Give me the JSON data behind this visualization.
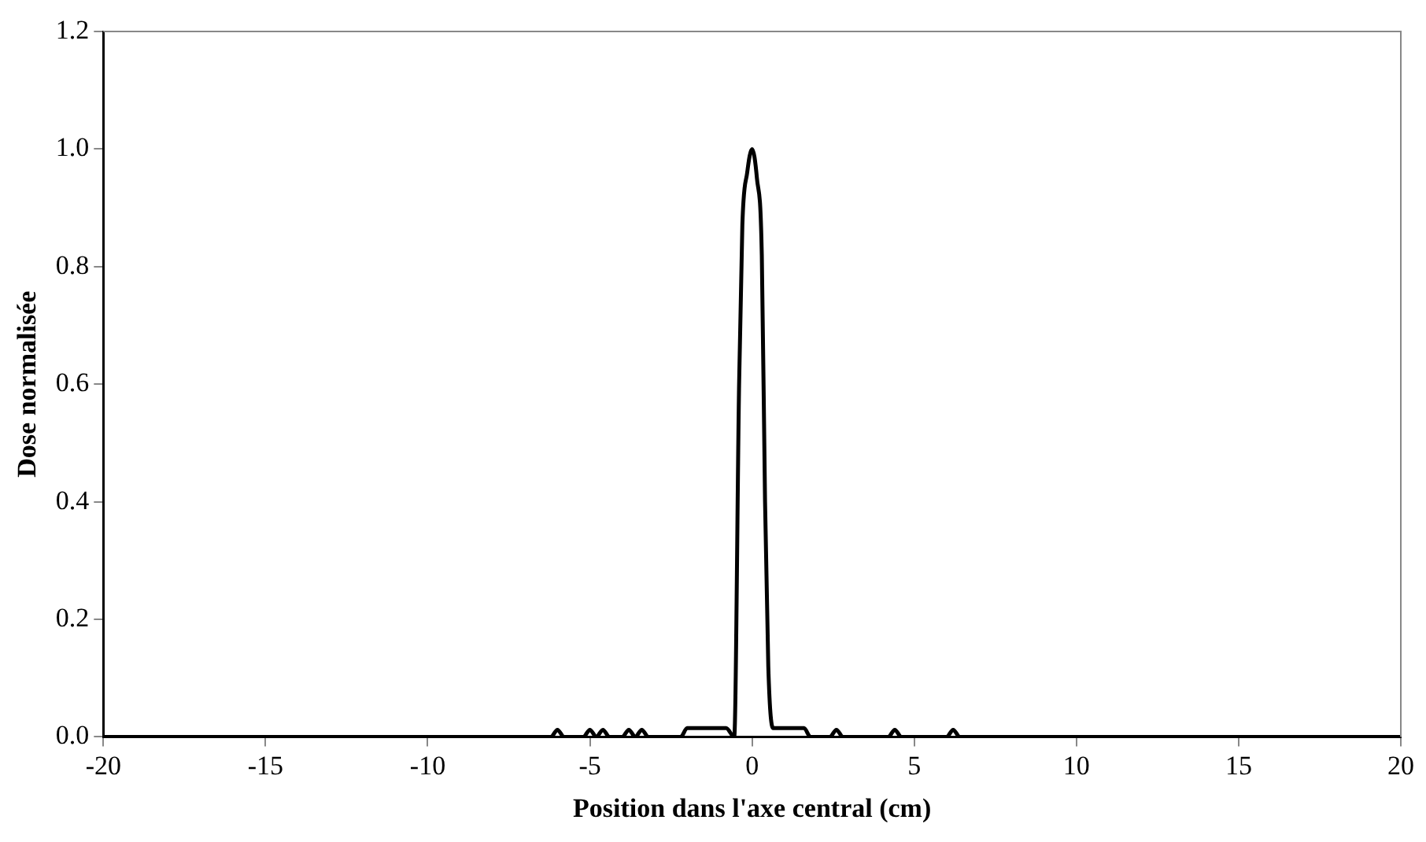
{
  "chart_data": {
    "type": "line",
    "xlabel": "Position dans l'axe central (cm)",
    "ylabel": "Dose normalisée",
    "xlim": [
      -20,
      20
    ],
    "xticks": [
      -20,
      -15,
      -10,
      -5,
      0,
      5,
      10,
      15,
      20
    ],
    "ylim": [
      0,
      1.2
    ],
    "yticks": [
      {
        "value": 0,
        "label": "0.0"
      },
      {
        "value": 0.2,
        "label": "0.2"
      },
      {
        "value": 0.4,
        "label": "0.4"
      },
      {
        "value": 0.6,
        "label": "0.6"
      },
      {
        "value": 0.8,
        "label": "0.8"
      },
      {
        "value": 1,
        "label": "1.0"
      },
      {
        "value": 1.2,
        "label": "1.2"
      }
    ],
    "grid": false,
    "legend": false,
    "marker": "none",
    "line_style": "solid",
    "series": [
      {
        "color": "#000000",
        "x": [
          -20,
          -6.2,
          -6.0,
          -5.8,
          -5.2,
          -5.0,
          -4.8,
          -4.6,
          -4.4,
          -4.0,
          -3.8,
          -3.6,
          -3.4,
          -3.2,
          -2.2,
          -2.0,
          -0.8,
          -0.55,
          -0.4,
          -0.3,
          -0.15,
          0,
          0.15,
          0.3,
          0.4,
          0.5,
          0.65,
          1.6,
          1.8,
          2.4,
          2.6,
          2.8,
          4.2,
          4.4,
          4.6,
          6.0,
          6.2,
          6.4,
          20
        ],
        "values": [
          0,
          0,
          0.012,
          0,
          0,
          0.012,
          0,
          0.012,
          0,
          0,
          0.012,
          0,
          0.012,
          0,
          0,
          0.015,
          0.015,
          0,
          0.6,
          0.87,
          0.96,
          1.0,
          0.95,
          0.82,
          0.4,
          0.12,
          0.015,
          0.015,
          0,
          0,
          0.012,
          0,
          0,
          0.012,
          0,
          0,
          0.012,
          0,
          0
        ]
      }
    ]
  }
}
